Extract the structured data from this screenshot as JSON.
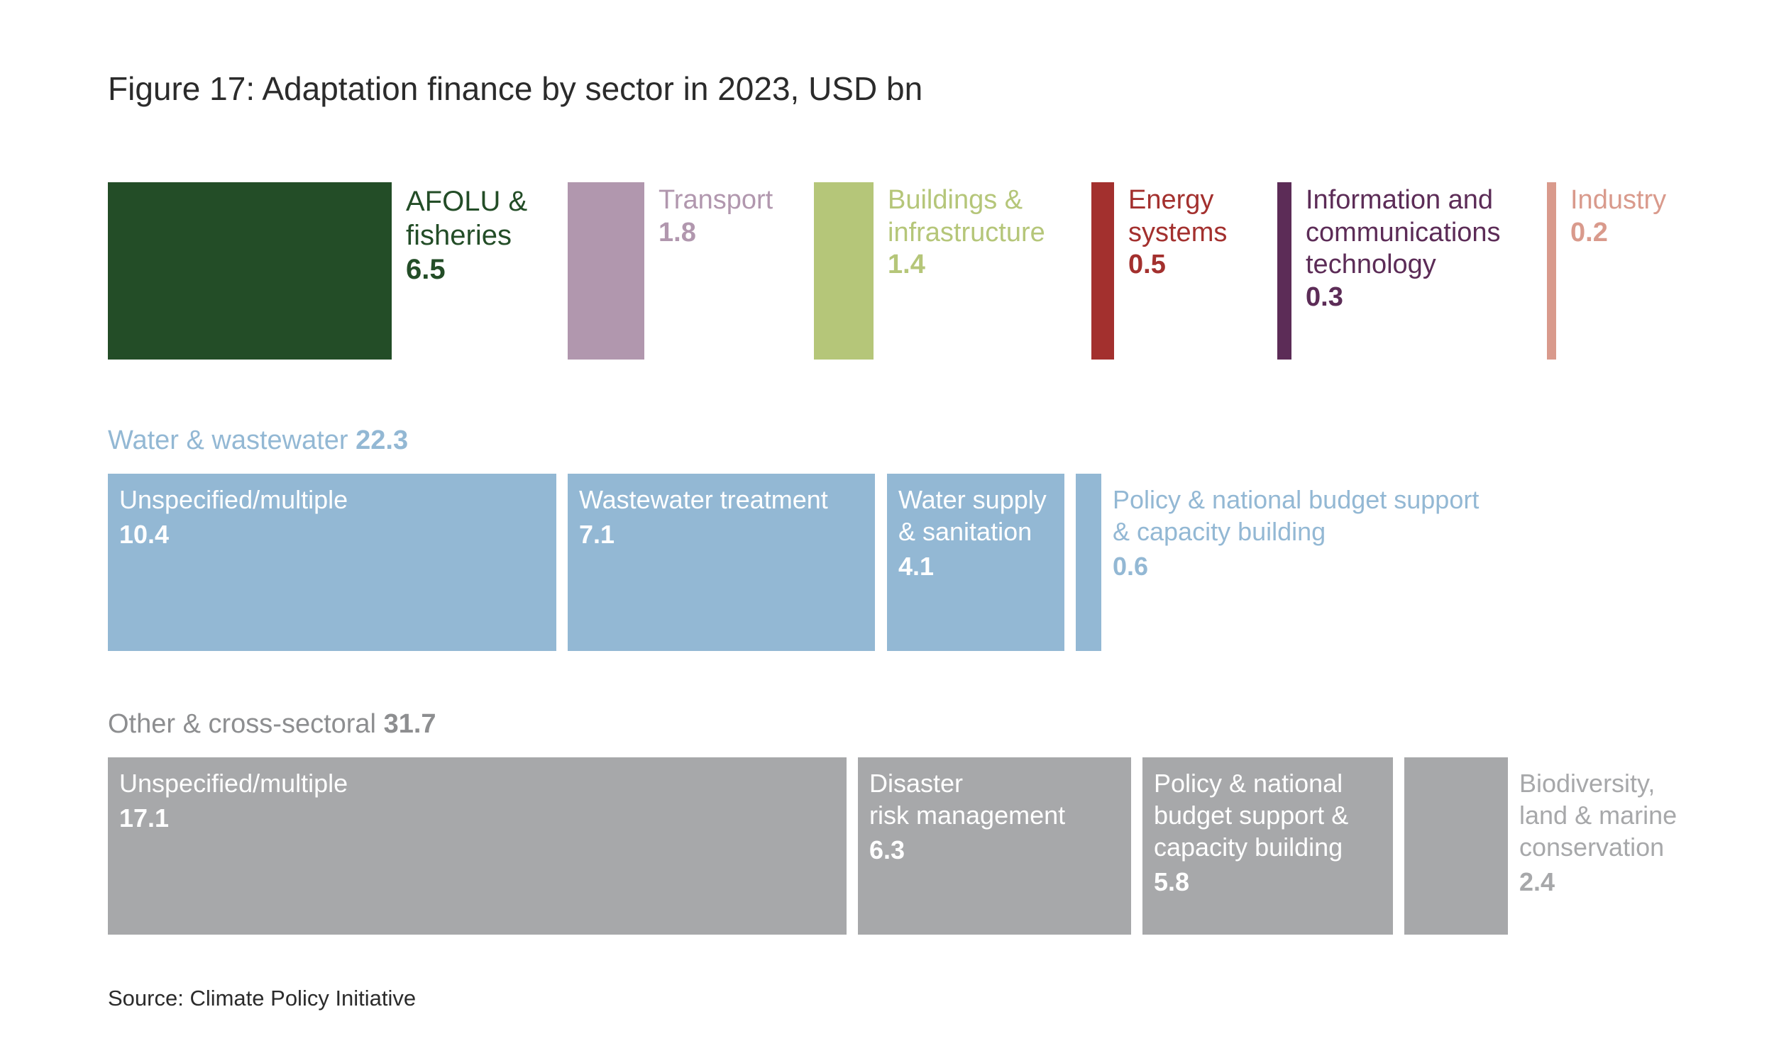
{
  "title": "Figure 17: Adaptation finance by sector in 2023, USD bn",
  "source": "Source: Climate Policy Initiative",
  "colors": {
    "water": "#93b8d4",
    "other": "#a7a8aa",
    "text_dark": "#2b2b2b"
  },
  "chart_data": {
    "type": "treemap",
    "groups": [
      {
        "name": "",
        "total": null,
        "items": [
          {
            "name": "AFOLU &\nfisheries",
            "value": 6.5,
            "color": "#234d27"
          },
          {
            "name": "Transport",
            "value": 1.8,
            "color": "#b197ae"
          },
          {
            "name": "Buildings &\ninfrastructure",
            "value": 1.4,
            "color": "#b5c679"
          },
          {
            "name": "Energy\nsystems",
            "value": 0.5,
            "color": "#a3302e"
          },
          {
            "name": "Information and\ncommunications\ntechnology",
            "value": 0.3,
            "color": "#5c2c57"
          },
          {
            "name": "Industry",
            "value": 0.2,
            "color": "#d99a8c"
          }
        ]
      },
      {
        "name": "Water & wastewater",
        "total": 22.3,
        "items": [
          {
            "name": "Unspecified/multiple",
            "value": 10.4
          },
          {
            "name": "Wastewater treatment",
            "value": 7.1
          },
          {
            "name": "Water supply\n& sanitation",
            "value": 4.1
          },
          {
            "name": "Policy & national budget support\n& capacity building",
            "value": 0.6
          }
        ]
      },
      {
        "name": "Other & cross-sectoral",
        "total": 31.7,
        "items": [
          {
            "name": "Unspecified/multiple",
            "value": 17.1
          },
          {
            "name": "Disaster\nrisk management",
            "value": 6.3
          },
          {
            "name": "Policy & national\nbudget support &\ncapacity building",
            "value": 5.8
          },
          {
            "name": "Biodiversity,\nland & marine\nconservation",
            "value": 2.4
          }
        ]
      }
    ]
  }
}
